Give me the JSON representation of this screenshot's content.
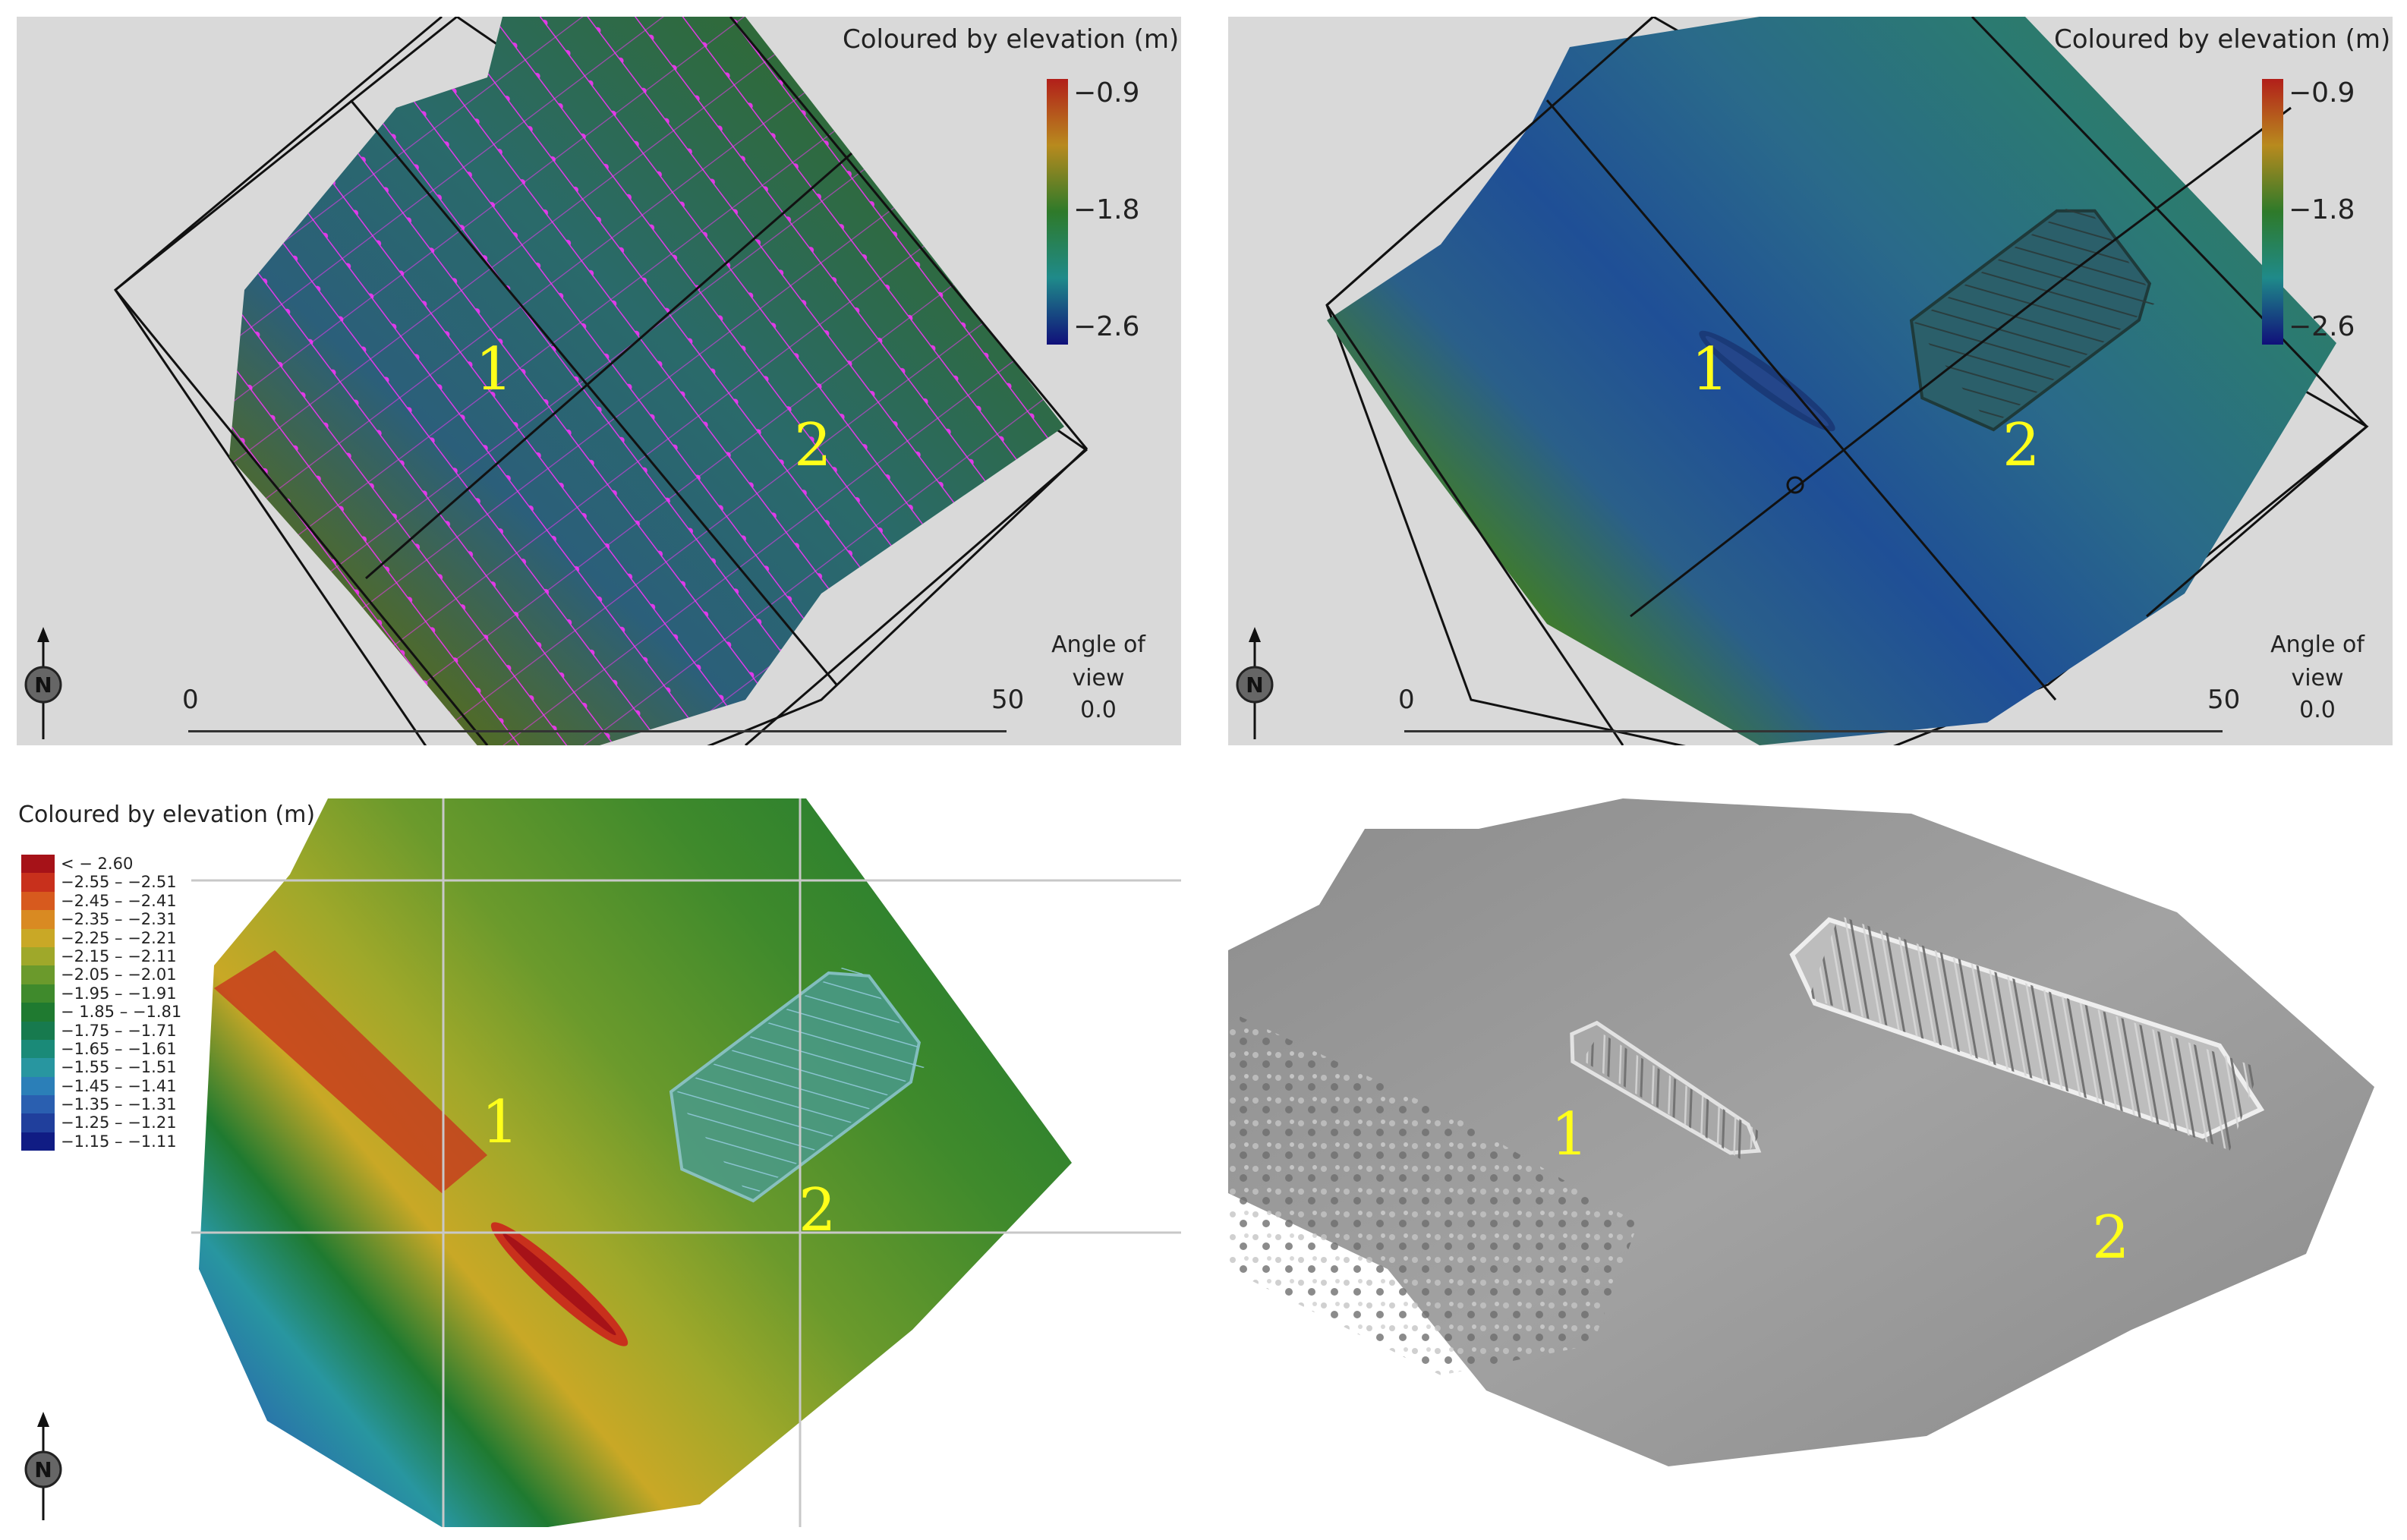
{
  "panels": {
    "top_left": {
      "legend_title": "Coloured by elevation (m)",
      "legend_ticks": [
        "−0.9",
        "−1.8",
        "−2.6"
      ],
      "angle_label": "Angle of view",
      "angle_value": "0.0",
      "scale_start": "0",
      "scale_end": "50",
      "markers": [
        "1",
        "2"
      ],
      "north": "N"
    },
    "top_right": {
      "legend_title": "Coloured by elevation (m)",
      "legend_ticks": [
        "−0.9",
        "−1.8",
        "−2.6"
      ],
      "angle_label": "Angle of view",
      "angle_value": "0.0",
      "scale_start": "0",
      "scale_end": "50",
      "markers": [
        "1",
        "2"
      ],
      "north": "N"
    },
    "bottom_left": {
      "legend_title": "Coloured by elevation (m)",
      "legend_classes": [
        {
          "label": "< − 2.60",
          "color": "#a61218"
        },
        {
          "label": "−2.55 – −2.51",
          "color": "#c8301c"
        },
        {
          "label": "−2.45 – −2.41",
          "color": "#d75a1e"
        },
        {
          "label": "−2.35 – −2.31",
          "color": "#d98a22"
        },
        {
          "label": "−2.25 – −2.21",
          "color": "#c9a826"
        },
        {
          "label": "−2.15 – −2.11",
          "color": "#9fa82a"
        },
        {
          "label": "−2.05 – −2.01",
          "color": "#6b9a2c"
        },
        {
          "label": "−1.95 – −1.91",
          "color": "#3f8a2c"
        },
        {
          "label": "− 1.85 – −1.81",
          "color": "#1f7a30"
        },
        {
          "label": "−1.75 – −1.71",
          "color": "#177a4e"
        },
        {
          "label": "−1.65 – −1.61",
          "color": "#1a8a78"
        },
        {
          "label": "−1.55 – −1.51",
          "color": "#2896a0"
        },
        {
          "label": "−1.45 – −1.41",
          "color": "#2b7fb8"
        },
        {
          "label": "−1.35 – −1.31",
          "color": "#2a5fb0"
        },
        {
          "label": "−1.25 – −1.21",
          "color": "#203f9c"
        },
        {
          "label": "−1.15 – −1.11",
          "color": "#101c84"
        }
      ],
      "markers": [
        "1",
        "2"
      ],
      "north": "N"
    },
    "bottom_right": {
      "markers": [
        "1",
        "2"
      ]
    }
  },
  "colors": {
    "track_lines": "#ff33ff",
    "marker_text": "#ffff1a",
    "panel_background": "#d9d9d9",
    "hillshade": "#9a9a9a"
  }
}
